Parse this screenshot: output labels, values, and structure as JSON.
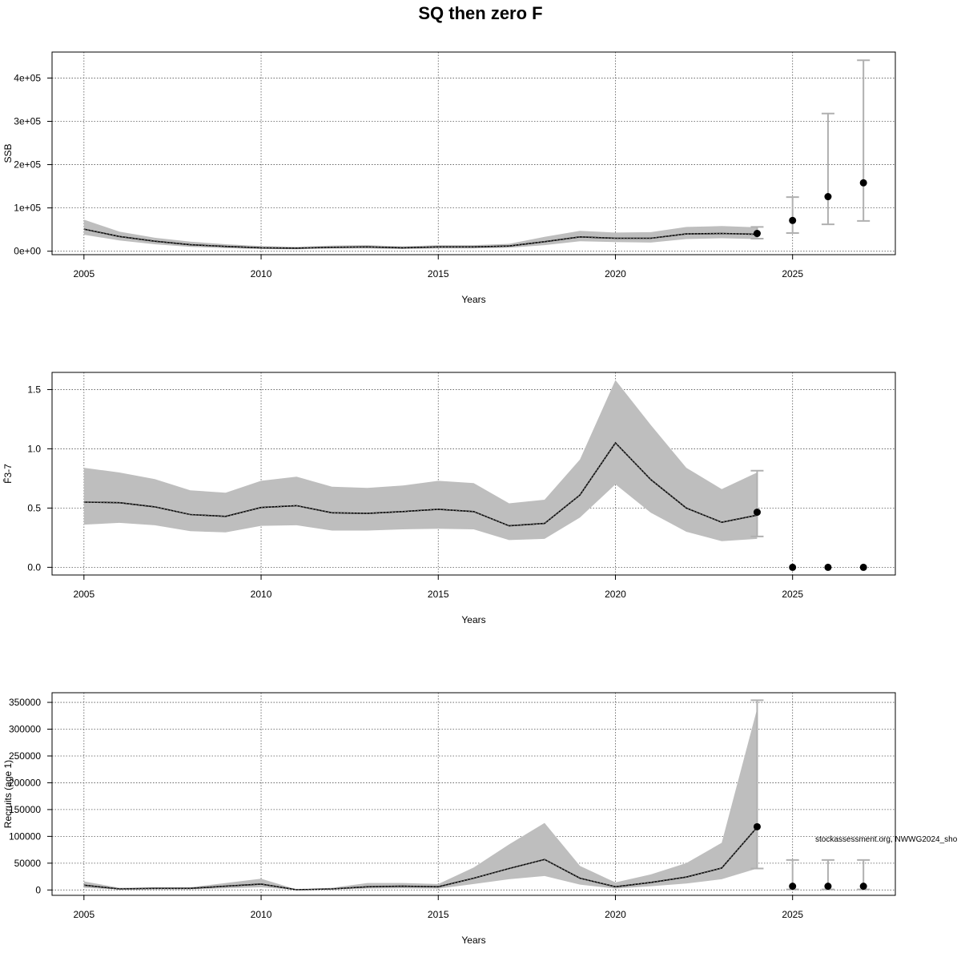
{
  "title": "SQ then zero F",
  "watermark": "stockassessment.org, NWWG2024_sho",
  "colors": {
    "band": "#bebebe",
    "bar": "#b0b0b0",
    "line": "#000000",
    "grid": "#555555"
  },
  "chart_data": [
    {
      "type": "line",
      "ylabel": "SSB",
      "xlabel": "Years",
      "xlim": [
        2004.1,
        2027.9
      ],
      "ylim": [
        -8000,
        460000
      ],
      "xticks": [
        2005,
        2010,
        2015,
        2020,
        2025
      ],
      "yticks": [
        0,
        100000,
        200000,
        300000,
        400000
      ],
      "ytick_labels": [
        "0e+00",
        "1e+05",
        "2e+05",
        "3e+05",
        "4e+05"
      ],
      "grid": true,
      "x": [
        2005,
        2006,
        2007,
        2008,
        2009,
        2010,
        2011,
        2012,
        2013,
        2014,
        2015,
        2016,
        2017,
        2018,
        2019,
        2020,
        2021,
        2022,
        2023,
        2024
      ],
      "estimate": [
        51000,
        34000,
        23000,
        15000,
        11000,
        8000,
        7000,
        9000,
        10000,
        8000,
        10000,
        10000,
        12000,
        22000,
        33000,
        30000,
        30000,
        40000,
        41000,
        39000
      ],
      "low": [
        38000,
        25000,
        16000,
        10000,
        7000,
        5000,
        4500,
        6000,
        6500,
        5000,
        6500,
        6500,
        8000,
        14000,
        23000,
        21000,
        20000,
        28000,
        30000,
        28000
      ],
      "high": [
        73000,
        45000,
        31000,
        22000,
        16000,
        12000,
        10000,
        13000,
        14000,
        11000,
        14000,
        14000,
        17000,
        33000,
        47000,
        43000,
        44000,
        56000,
        58000,
        55000
      ],
      "forecast": {
        "x": [
          2024,
          2025,
          2026,
          2027
        ],
        "median": [
          41000,
          71000,
          126000,
          158000
        ],
        "low": [
          29000,
          42000,
          62000,
          70000
        ],
        "high": [
          56000,
          125000,
          318000,
          441000
        ]
      }
    },
    {
      "type": "line",
      "ylabel": "F̄3-7",
      "xlabel": "Years",
      "xlim": [
        2004.1,
        2027.9
      ],
      "ylim": [
        -0.065,
        1.645
      ],
      "xticks": [
        2005,
        2010,
        2015,
        2020,
        2025
      ],
      "yticks": [
        0,
        0.5,
        1.0,
        1.5
      ],
      "ytick_labels": [
        "0.0",
        "0.5",
        "1.0",
        "1.5"
      ],
      "grid": true,
      "x": [
        2005,
        2006,
        2007,
        2008,
        2009,
        2010,
        2011,
        2012,
        2013,
        2014,
        2015,
        2016,
        2017,
        2018,
        2019,
        2020,
        2021,
        2022,
        2023,
        2024
      ],
      "estimate": [
        0.55,
        0.545,
        0.51,
        0.445,
        0.43,
        0.505,
        0.52,
        0.46,
        0.455,
        0.47,
        0.49,
        0.47,
        0.35,
        0.37,
        0.61,
        1.05,
        0.74,
        0.5,
        0.38,
        0.44
      ],
      "low": [
        0.36,
        0.375,
        0.355,
        0.305,
        0.295,
        0.35,
        0.355,
        0.31,
        0.31,
        0.32,
        0.325,
        0.32,
        0.23,
        0.24,
        0.42,
        0.7,
        0.46,
        0.3,
        0.22,
        0.24
      ],
      "high": [
        0.84,
        0.8,
        0.745,
        0.65,
        0.63,
        0.73,
        0.765,
        0.68,
        0.67,
        0.69,
        0.73,
        0.71,
        0.54,
        0.57,
        0.91,
        1.58,
        1.2,
        0.84,
        0.66,
        0.8
      ],
      "forecast": {
        "x": [
          2024,
          2025,
          2026,
          2027
        ],
        "median": [
          0.465,
          0,
          0,
          0
        ],
        "low": [
          0.26,
          0,
          0,
          0
        ],
        "high": [
          0.815,
          0,
          0,
          0
        ]
      }
    },
    {
      "type": "line",
      "ylabel": "Recruits (age 1)",
      "xlabel": "Years",
      "xlim": [
        2004.1,
        2027.9
      ],
      "ylim": [
        -10000,
        368000
      ],
      "xticks": [
        2005,
        2010,
        2015,
        2020,
        2025
      ],
      "yticks": [
        0,
        50000,
        100000,
        150000,
        200000,
        250000,
        300000,
        350000
      ],
      "ytick_labels": [
        "0",
        "50000",
        "100000",
        "150000",
        "200000",
        "250000",
        "300000",
        "350000"
      ],
      "grid": true,
      "x": [
        2005,
        2006,
        2007,
        2008,
        2009,
        2010,
        2011,
        2012,
        2013,
        2014,
        2015,
        2016,
        2017,
        2018,
        2019,
        2020,
        2021,
        2022,
        2023,
        2024
      ],
      "estimate": [
        9000,
        2000,
        3000,
        3000,
        7000,
        11000,
        500,
        2000,
        6000,
        7000,
        6000,
        22000,
        40000,
        57000,
        22000,
        6000,
        14000,
        24000,
        41000,
        117000
      ],
      "low": [
        4000,
        800,
        1200,
        1200,
        3000,
        5000,
        200,
        800,
        2500,
        3000,
        2500,
        11000,
        20000,
        26000,
        10000,
        2500,
        7000,
        12000,
        20000,
        40000
      ],
      "high": [
        16000,
        4000,
        5000,
        5000,
        13000,
        21000,
        1000,
        4000,
        13000,
        13000,
        11000,
        42000,
        85000,
        125000,
        45000,
        14000,
        29000,
        50000,
        88000,
        338000
      ],
      "forecast": {
        "x": [
          2024,
          2025,
          2026,
          2027
        ],
        "median": [
          118000,
          7000,
          7000,
          7000
        ],
        "low": [
          40000,
          1000,
          1000,
          1000
        ],
        "high": [
          354000,
          56000,
          56000,
          56000
        ]
      }
    }
  ]
}
